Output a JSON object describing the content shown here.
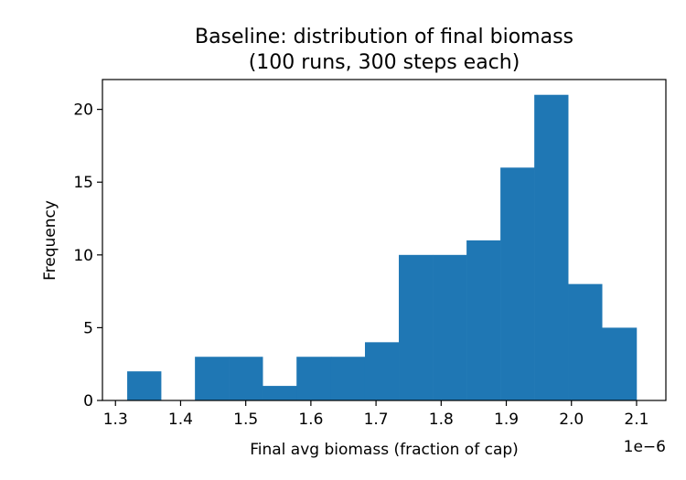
{
  "chart_data": {
    "type": "histogram",
    "title_lines": [
      "Baseline: distribution of final biomass",
      "(100 runs, 300 steps each)"
    ],
    "xlabel": "Final avg biomass  (fraction of cap)",
    "ylabel": "Frequency",
    "x_offset_label": "1e−6",
    "xlim": [
      1.28,
      2.145
    ],
    "ylim": [
      0,
      22.05
    ],
    "x_ticks": [
      1.3,
      1.4,
      1.5,
      1.6,
      1.7,
      1.8,
      1.9,
      2.0,
      2.1
    ],
    "x_tick_labels": [
      "1.3",
      "1.4",
      "1.5",
      "1.6",
      "1.7",
      "1.8",
      "1.9",
      "2.0",
      "2.1"
    ],
    "y_ticks": [
      0,
      5,
      10,
      15,
      20
    ],
    "y_tick_labels": [
      "0",
      "5",
      "10",
      "15",
      "20"
    ],
    "bin_edges": [
      1.318,
      1.37,
      1.422,
      1.474,
      1.526,
      1.578,
      1.631,
      1.683,
      1.735,
      1.787,
      1.839,
      1.891,
      1.943,
      1.995,
      2.047,
      2.1
    ],
    "counts": [
      2,
      0,
      3,
      3,
      1,
      3,
      3,
      4,
      10,
      10,
      11,
      16,
      21,
      8,
      5
    ],
    "bar_color": "#1f77b4",
    "grid": false,
    "legend": "none"
  }
}
